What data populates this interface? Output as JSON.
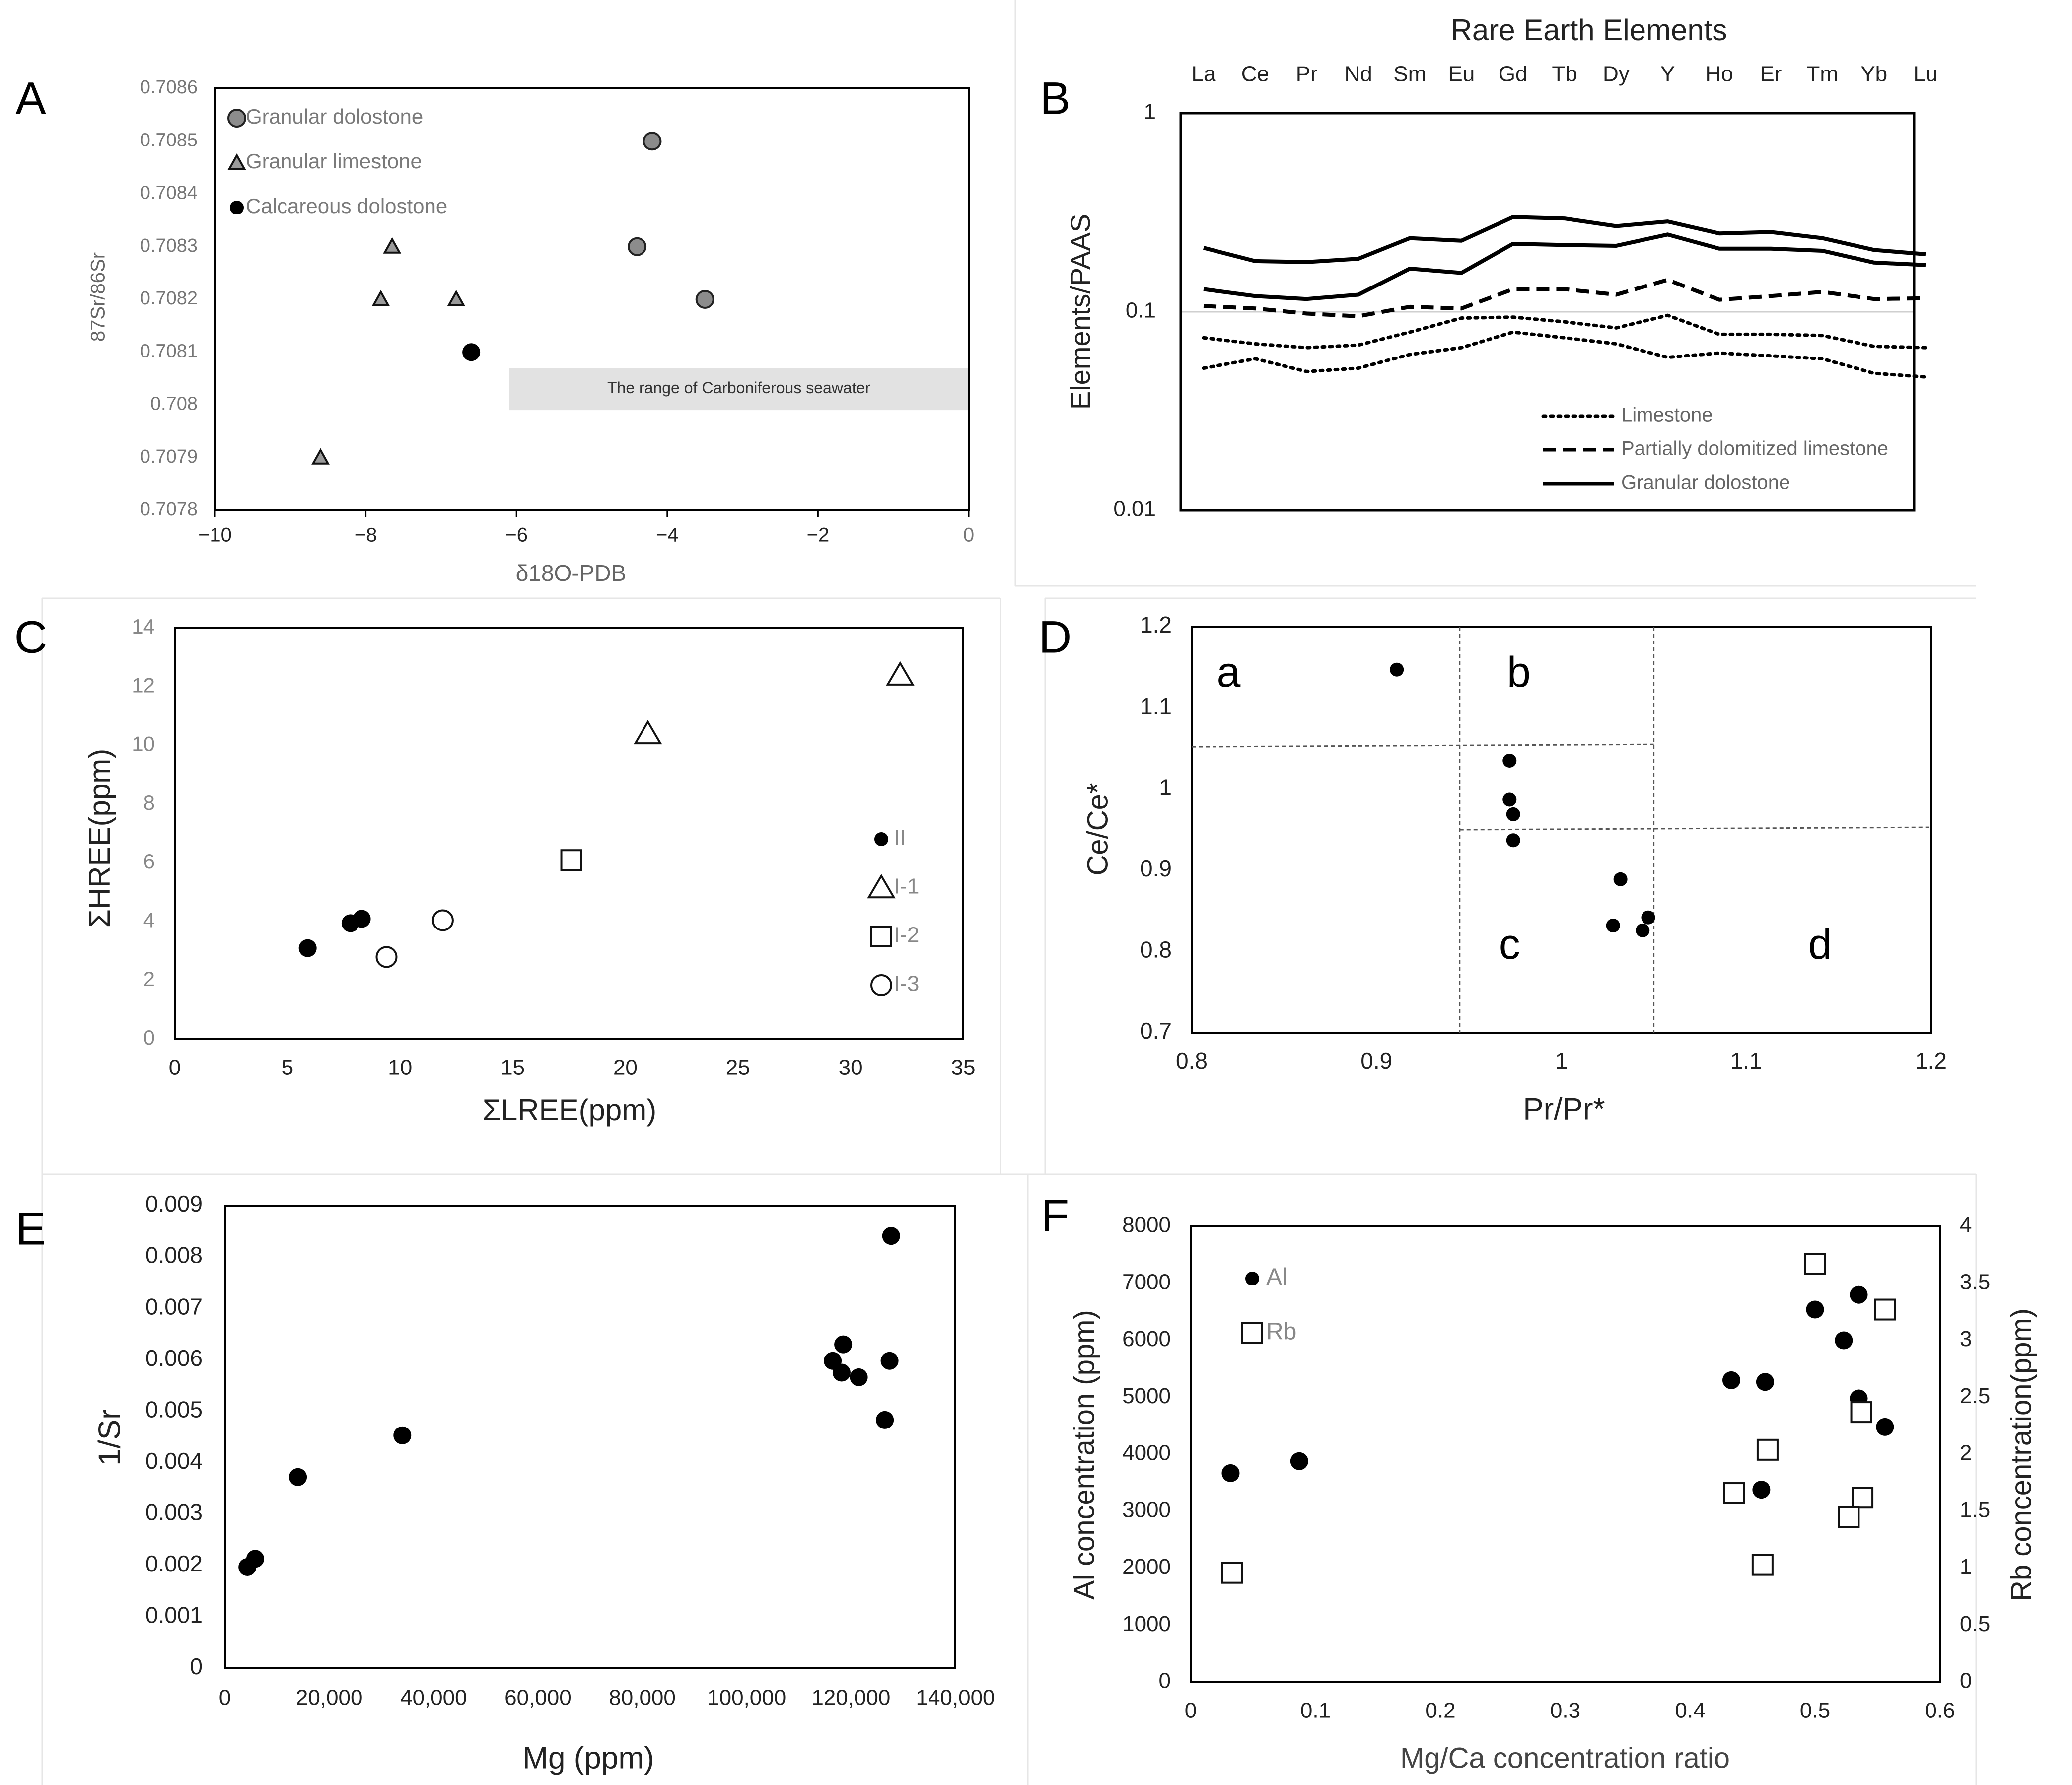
{
  "panels": [
    {
      "id": "A",
      "letter": "A",
      "type": "scatter",
      "xlabel": "δ18O-PDB",
      "ylabel": "87Sr/86Sr",
      "xlim": [
        -10,
        0
      ],
      "ylim": [
        0.7078,
        0.7086
      ],
      "xticks": [
        {
          "v": -10,
          "label": "−10"
        },
        {
          "v": -8,
          "label": "−8"
        },
        {
          "v": -6,
          "label": "−6"
        },
        {
          "v": -4,
          "label": "−4"
        },
        {
          "v": -2,
          "label": "−2"
        },
        {
          "v": 0,
          "label": "0"
        }
      ],
      "yticks": [
        {
          "v": 0.7078,
          "label": "0.7078"
        },
        {
          "v": 0.7079,
          "label": "0.7079"
        },
        {
          "v": 0.708,
          "label": "0.708"
        },
        {
          "v": 0.7081,
          "label": "0.7081"
        },
        {
          "v": 0.7082,
          "label": "0.7082"
        },
        {
          "v": 0.7083,
          "label": "0.7083"
        },
        {
          "v": 0.7084,
          "label": "0.7084"
        },
        {
          "v": 0.7085,
          "label": "0.7085"
        },
        {
          "v": 0.7086,
          "label": "0.7086"
        }
      ],
      "band": {
        "x": [
          -6.1,
          0
        ],
        "y": [
          0.70799,
          0.70807
        ],
        "label": "The range of Carboniferous seawater",
        "color": "#e2e2e2"
      },
      "series": [
        {
          "name": "Granular dolostone",
          "marker": "circle-grey",
          "points": [
            [
              -4.2,
              0.7085
            ],
            [
              -4.4,
              0.7083
            ],
            [
              -3.5,
              0.7082
            ]
          ]
        },
        {
          "name": "Granular limestone",
          "marker": "triangle-grey",
          "points": [
            [
              -7.65,
              0.7083
            ],
            [
              -7.8,
              0.7082
            ],
            [
              -6.8,
              0.7082
            ],
            [
              -8.6,
              0.7079
            ]
          ]
        },
        {
          "name": "Calcareous dolostone",
          "marker": "dot-black",
          "points": [
            [
              -6.6,
              0.7081
            ]
          ]
        }
      ]
    },
    {
      "id": "B",
      "letter": "B",
      "type": "line",
      "title": "Rare Earth Elements",
      "ylabel": "Elements/PAAS",
      "yscale": "log",
      "ylim": [
        0.01,
        1
      ],
      "categories": [
        "La",
        "Ce",
        "Pr",
        "Nd",
        "Sm",
        "Eu",
        "Gd",
        "Tb",
        "Dy",
        "Y",
        "Ho",
        "Er",
        "Tm",
        "Yb",
        "Lu"
      ],
      "yticks": [
        {
          "v": 0.01,
          "label": "0.01"
        },
        {
          "v": 0.1,
          "label": "0.1"
        },
        {
          "v": 1,
          "label": "1"
        }
      ],
      "legend": [
        "Limestone",
        "Partially dolomitized limestone",
        "Granular dolostone"
      ],
      "series": [
        {
          "name": "Granular dolostone",
          "style": "solid",
          "values": [
            0.21,
            0.18,
            0.178,
            0.185,
            0.235,
            0.228,
            0.3,
            0.295,
            0.27,
            0.285,
            0.248,
            0.252,
            0.235,
            0.205,
            0.195
          ]
        },
        {
          "name": "Granular dolostone",
          "style": "solid",
          "values": [
            0.13,
            0.12,
            0.116,
            0.122,
            0.165,
            0.157,
            0.22,
            0.217,
            0.215,
            0.245,
            0.208,
            0.208,
            0.203,
            0.177,
            0.172
          ]
        },
        {
          "name": "Partially dolomitized limestone",
          "style": "dashed",
          "values": [
            0.107,
            0.104,
            0.098,
            0.095,
            0.106,
            0.104,
            0.13,
            0.13,
            0.122,
            0.145,
            0.115,
            0.12,
            0.126,
            0.116,
            0.117
          ]
        },
        {
          "name": "Limestone",
          "style": "dotted",
          "values": [
            0.074,
            0.069,
            0.066,
            0.068,
            0.079,
            0.093,
            0.094,
            0.089,
            0.083,
            0.096,
            0.077,
            0.077,
            0.076,
            0.067,
            0.066
          ]
        },
        {
          "name": "Limestone",
          "style": "dotted",
          "values": [
            0.052,
            0.058,
            0.05,
            0.052,
            0.061,
            0.066,
            0.079,
            0.074,
            0.069,
            0.059,
            0.062,
            0.06,
            0.058,
            0.049,
            0.047
          ]
        }
      ]
    },
    {
      "id": "C",
      "letter": "C",
      "type": "scatter",
      "xlabel": "ΣLREE(ppm)",
      "ylabel": "ΣHREE(ppm)",
      "xlim": [
        0,
        35
      ],
      "ylim": [
        0,
        14
      ],
      "xticks": [
        {
          "v": 0,
          "label": "0"
        },
        {
          "v": 5,
          "label": "5"
        },
        {
          "v": 10,
          "label": "10"
        },
        {
          "v": 15,
          "label": "15"
        },
        {
          "v": 20,
          "label": "20"
        },
        {
          "v": 25,
          "label": "25"
        },
        {
          "v": 30,
          "label": "30"
        },
        {
          "v": 35,
          "label": "35"
        }
      ],
      "yticks": [
        {
          "v": 0,
          "label": "0"
        },
        {
          "v": 2,
          "label": "2"
        },
        {
          "v": 4,
          "label": "4"
        },
        {
          "v": 6,
          "label": "6"
        },
        {
          "v": 8,
          "label": "8"
        },
        {
          "v": 10,
          "label": "10"
        },
        {
          "v": 12,
          "label": "12"
        },
        {
          "v": 14,
          "label": "14"
        }
      ],
      "series": [
        {
          "name": "II",
          "marker": "dot-black",
          "points": [
            [
              5.9,
              3.1
            ],
            [
              7.8,
              3.95
            ],
            [
              8.3,
              4.1
            ]
          ]
        },
        {
          "name": "I-1",
          "marker": "triangle-open",
          "points": [
            [
              21.0,
              10.4
            ],
            [
              32.2,
              12.4
            ]
          ]
        },
        {
          "name": "I-2",
          "marker": "square-open",
          "points": [
            [
              17.6,
              6.1
            ]
          ]
        },
        {
          "name": "I-3",
          "marker": "circle-open",
          "points": [
            [
              9.4,
              2.8
            ],
            [
              11.9,
              4.05
            ]
          ]
        }
      ]
    },
    {
      "id": "D",
      "letter": "D",
      "type": "scatter",
      "xlabel": "Pr/Pr*",
      "ylabel": "Ce/Ce*",
      "xlim": [
        0.8,
        1.2
      ],
      "ylim": [
        0.7,
        1.2
      ],
      "xticks": [
        {
          "v": 0.8,
          "label": "0.8"
        },
        {
          "v": 0.9,
          "label": "0.9"
        },
        {
          "v": 1.0,
          "label": "1"
        },
        {
          "v": 1.1,
          "label": "1.1"
        },
        {
          "v": 1.2,
          "label": "1.2"
        }
      ],
      "yticks": [
        {
          "v": 0.7,
          "label": "0.7"
        },
        {
          "v": 0.8,
          "label": "0.8"
        },
        {
          "v": 0.9,
          "label": "0.9"
        },
        {
          "v": 1.0,
          "label": "1"
        },
        {
          "v": 1.1,
          "label": "1.1"
        },
        {
          "v": 1.2,
          "label": "1.2"
        }
      ],
      "field_labels": [
        {
          "text": "a",
          "x": 0.82,
          "y": 1.14
        },
        {
          "text": "b",
          "x": 0.977,
          "y": 1.14
        },
        {
          "text": "c",
          "x": 0.972,
          "y": 0.805
        },
        {
          "text": "d",
          "x": 1.14,
          "y": 0.805
        }
      ],
      "dividers": {
        "vertical": [
          0.945,
          1.05
        ],
        "upper_horizontal": [
          1.052,
          1.055
        ],
        "lower_horizontal": [
          0.95,
          0.953
        ]
      },
      "series": [
        {
          "name": "samples",
          "marker": "dot-black",
          "points": [
            [
              0.911,
              1.147
            ],
            [
              0.972,
              1.035
            ],
            [
              0.972,
              0.987
            ],
            [
              0.974,
              0.969
            ],
            [
              0.974,
              0.937
            ],
            [
              1.032,
              0.889
            ],
            [
              1.047,
              0.842
            ],
            [
              1.028,
              0.832
            ],
            [
              1.044,
              0.826
            ]
          ]
        }
      ]
    },
    {
      "id": "E",
      "letter": "E",
      "type": "scatter",
      "xlabel": "Mg (ppm)",
      "ylabel": "1/Sr",
      "xlim": [
        0,
        140000
      ],
      "ylim": [
        0,
        0.009
      ],
      "xticks": [
        {
          "v": 0,
          "label": "0"
        },
        {
          "v": 20000,
          "label": "20,000"
        },
        {
          "v": 40000,
          "label": "40,000"
        },
        {
          "v": 60000,
          "label": "60,000"
        },
        {
          "v": 80000,
          "label": "80,000"
        },
        {
          "v": 100000,
          "label": "100,000"
        },
        {
          "v": 120000,
          "label": "120,000"
        },
        {
          "v": 140000,
          "label": "140,000"
        }
      ],
      "yticks": [
        {
          "v": 0,
          "label": "0"
        },
        {
          "v": 0.001,
          "label": "0.001"
        },
        {
          "v": 0.002,
          "label": "0.002"
        },
        {
          "v": 0.003,
          "label": "0.003"
        },
        {
          "v": 0.004,
          "label": "0.004"
        },
        {
          "v": 0.005,
          "label": "0.005"
        },
        {
          "v": 0.006,
          "label": "0.006"
        },
        {
          "v": 0.007,
          "label": "0.007"
        },
        {
          "v": 0.008,
          "label": "0.008"
        },
        {
          "v": 0.009,
          "label": "0.009"
        }
      ],
      "series": [
        {
          "name": "samples",
          "marker": "dot-black",
          "points": [
            [
              4300,
              0.00197
            ],
            [
              5800,
              0.00213
            ],
            [
              14000,
              0.00372
            ],
            [
              34000,
              0.00453
            ],
            [
              116500,
              0.00598
            ],
            [
              118500,
              0.0063
            ],
            [
              118200,
              0.00575
            ],
            [
              121500,
              0.00566
            ],
            [
              127400,
              0.00598
            ],
            [
              126500,
              0.00483
            ],
            [
              127700,
              0.00841
            ]
          ]
        }
      ]
    },
    {
      "id": "F",
      "letter": "F",
      "type": "scatter",
      "xlabel": "Mg/Ca concentration ratio",
      "ylabel": "Al concentration (ppm)",
      "y2label": "Rb concentration(ppm)",
      "xlim": [
        0,
        0.6
      ],
      "ylim": [
        0,
        8000
      ],
      "y2lim": [
        0,
        4
      ],
      "xticks": [
        {
          "v": 0,
          "label": "0"
        },
        {
          "v": 0.1,
          "label": "0.1"
        },
        {
          "v": 0.2,
          "label": "0.2"
        },
        {
          "v": 0.3,
          "label": "0.3"
        },
        {
          "v": 0.4,
          "label": "0.4"
        },
        {
          "v": 0.5,
          "label": "0.5"
        },
        {
          "v": 0.6,
          "label": "0.6"
        }
      ],
      "yticks": [
        {
          "v": 0,
          "label": "0"
        },
        {
          "v": 1000,
          "label": "1000"
        },
        {
          "v": 2000,
          "label": "2000"
        },
        {
          "v": 3000,
          "label": "3000"
        },
        {
          "v": 4000,
          "label": "4000"
        },
        {
          "v": 5000,
          "label": "5000"
        },
        {
          "v": 6000,
          "label": "6000"
        },
        {
          "v": 7000,
          "label": "7000"
        },
        {
          "v": 8000,
          "label": "8000"
        }
      ],
      "y2ticks": [
        {
          "v": 0,
          "label": "0"
        },
        {
          "v": 0.5,
          "label": "0.5"
        },
        {
          "v": 1,
          "label": "1"
        },
        {
          "v": 1.5,
          "label": "1.5"
        },
        {
          "v": 2,
          "label": "2"
        },
        {
          "v": 2.5,
          "label": "2.5"
        },
        {
          "v": 3,
          "label": "3"
        },
        {
          "v": 3.5,
          "label": "3.5"
        },
        {
          "v": 4,
          "label": "4"
        }
      ],
      "series": [
        {
          "name": "Al",
          "axis": "left",
          "marker": "dot-black",
          "points": [
            [
              0.032,
              3670
            ],
            [
              0.087,
              3880
            ],
            [
              0.433,
              5300
            ],
            [
              0.46,
              5270
            ],
            [
              0.457,
              3380
            ],
            [
              0.5,
              6540
            ],
            [
              0.523,
              6000
            ],
            [
              0.535,
              6800
            ],
            [
              0.535,
              4980
            ],
            [
              0.556,
              4480
            ]
          ]
        },
        {
          "name": "Rb",
          "axis": "right",
          "marker": "square-open",
          "points": [
            [
              0.033,
              0.96
            ],
            [
              0.462,
              2.04
            ],
            [
              0.435,
              1.66
            ],
            [
              0.458,
              1.03
            ],
            [
              0.5,
              3.67
            ],
            [
              0.537,
              2.37
            ],
            [
              0.556,
              3.27
            ],
            [
              0.538,
              1.62
            ],
            [
              0.527,
              1.45
            ]
          ]
        }
      ]
    }
  ]
}
